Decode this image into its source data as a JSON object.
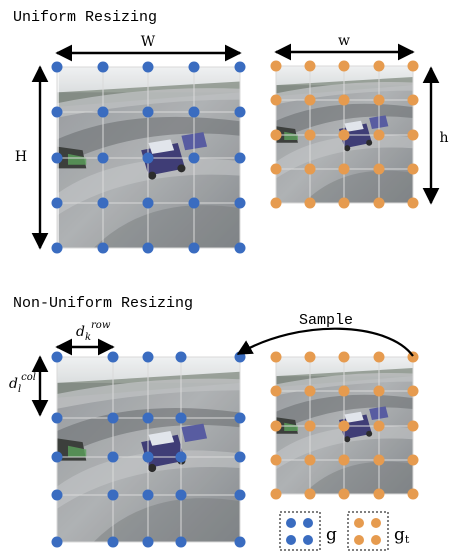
{
  "texts": {
    "uniform_title": "Uniform Resizing",
    "nonuniform_title": "Non-Uniform Resizing",
    "label_W": "W",
    "label_w": "w",
    "label_H": "H",
    "label_h": "h",
    "label_sample": "Sample",
    "label_dk_base": "d",
    "label_dk_sub": "k",
    "label_dk_sup": "row",
    "label_dl_base": "d",
    "label_dl_sub": "l",
    "label_dl_sup": "col",
    "legend_g": "g",
    "legend_gt_base": "g",
    "legend_gt_sub": "t"
  },
  "colors": {
    "blue_point": "#3a6cc0",
    "orange_point": "#e69b4f",
    "arrow": "#000000",
    "grid_line": "#d9d9d9"
  }
}
